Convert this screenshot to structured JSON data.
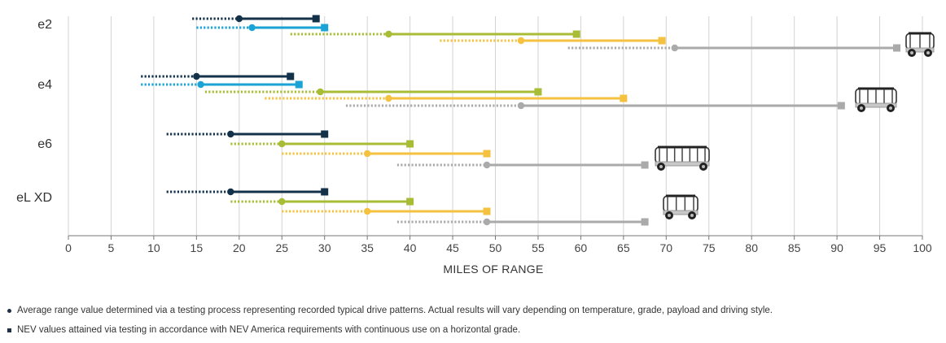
{
  "chart_data": {
    "type": "range-dumbbell",
    "title": "",
    "xlabel": "MILES OF RANGE",
    "ylabel": "",
    "xlim": [
      0,
      100
    ],
    "x_ticks": [
      "0",
      "5",
      "10",
      "15",
      "20",
      "25",
      "30",
      "35",
      "40",
      "45",
      "50",
      "55",
      "60",
      "65",
      "70",
      "75",
      "80",
      "85",
      "90",
      "95",
      "100"
    ],
    "grid": true,
    "colors": {
      "navy": "#13324a",
      "blue": "#1aa3d4",
      "green": "#a8bc35",
      "yellow": "#f5c240",
      "gray": "#aaaaaa"
    },
    "groups": [
      {
        "label": "e2",
        "vehicle_icon": "two-seat-vehicle-icon",
        "bars": [
          {
            "color": "navy",
            "dotted_start": 14.5,
            "average": 20,
            "nev": 29
          },
          {
            "color": "blue",
            "dotted_start": 15,
            "average": 21.5,
            "nev": 30
          },
          {
            "color": "green",
            "dotted_start": 26,
            "average": 37.5,
            "nev": 59.5
          },
          {
            "color": "yellow",
            "dotted_start": 43.5,
            "average": 53,
            "nev": 69.5
          },
          {
            "color": "gray",
            "dotted_start": 58.5,
            "average": 71,
            "nev": 97
          }
        ]
      },
      {
        "label": "e4",
        "vehicle_icon": "four-seat-vehicle-icon",
        "bars": [
          {
            "color": "navy",
            "dotted_start": 8.5,
            "average": 15,
            "nev": 26
          },
          {
            "color": "blue",
            "dotted_start": 8.5,
            "average": 15.5,
            "nev": 27
          },
          {
            "color": "green",
            "dotted_start": 16,
            "average": 29.5,
            "nev": 55
          },
          {
            "color": "yellow",
            "dotted_start": 23,
            "average": 37.5,
            "nev": 65
          },
          {
            "color": "gray",
            "dotted_start": 32.5,
            "average": 53,
            "nev": 90.5
          }
        ]
      },
      {
        "label": "e6",
        "vehicle_icon": "six-seat-vehicle-icon",
        "bars": [
          {
            "color": "navy",
            "dotted_start": 11.5,
            "average": 19,
            "nev": 30
          },
          {
            "color": "green",
            "dotted_start": 19,
            "average": 25,
            "nev": 40
          },
          {
            "color": "yellow",
            "dotted_start": 25,
            "average": 35,
            "nev": 49
          },
          {
            "color": "gray",
            "dotted_start": 38.5,
            "average": 49,
            "nev": 67.5
          }
        ]
      },
      {
        "label": "eL XD",
        "vehicle_icon": "utility-vehicle-icon",
        "bars": [
          {
            "color": "navy",
            "dotted_start": 11.5,
            "average": 19,
            "nev": 30
          },
          {
            "color": "green",
            "dotted_start": 19,
            "average": 25,
            "nev": 40
          },
          {
            "color": "yellow",
            "dotted_start": 25,
            "average": 35,
            "nev": 49
          },
          {
            "color": "gray",
            "dotted_start": 38.5,
            "average": 49,
            "nev": 67.5
          }
        ]
      }
    ]
  },
  "footnotes": {
    "average": "Average range value determined via a testing process representing recorded typical drive patterns. Actual results will vary depending on temperature, grade, payload and driving style.",
    "nev": "NEV values attained via testing in accordance with NEV America requirements with continuous use on a horizontal grade."
  }
}
